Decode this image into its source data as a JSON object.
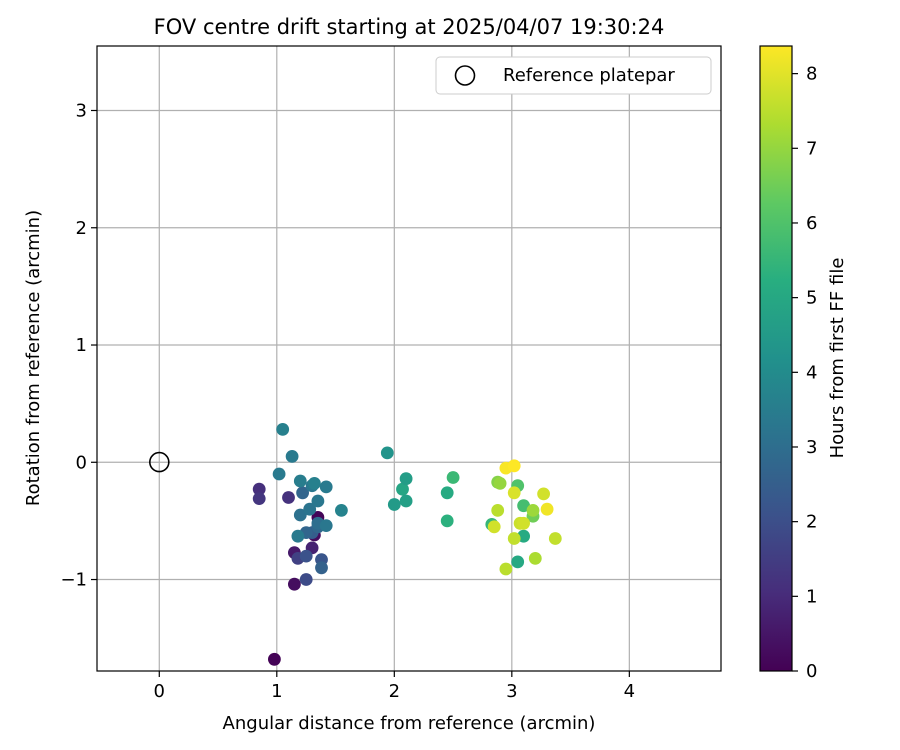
{
  "chart_data": {
    "type": "scatter",
    "title": "FOV centre drift starting at 2025/04/07 19:30:24",
    "xlabel": "Angular distance from reference (arcmin)",
    "ylabel": "Rotation from reference (arcmin)",
    "xlim": [
      -0.53,
      4.78
    ],
    "ylim": [
      -1.78,
      3.55
    ],
    "xticks": [
      0,
      1,
      2,
      3,
      4
    ],
    "yticks": [
      -1,
      0,
      1,
      2,
      3
    ],
    "xtick_labels": [
      "0",
      "1",
      "2",
      "3",
      "4"
    ],
    "ytick_labels": [
      "−1",
      "0",
      "1",
      "2",
      "3"
    ],
    "grid": true,
    "legend": {
      "label": "Reference platepar",
      "position": "top-right"
    },
    "reference_point": {
      "x": 0,
      "y": 0,
      "label": "Reference platepar"
    },
    "colorbar": {
      "label": "Hours from first FF file",
      "min": 0,
      "max": 8.37,
      "ticks": [
        0,
        1,
        2,
        3,
        4,
        5,
        6,
        7,
        8
      ],
      "tick_labels": [
        "0",
        "1",
        "2",
        "3",
        "4",
        "5",
        "6",
        "7",
        "8"
      ],
      "colormap": "viridis"
    },
    "points": [
      {
        "x": 0.98,
        "y": -1.68,
        "t": 0.05
      },
      {
        "x": 1.15,
        "y": -1.04,
        "t": 0.3
      },
      {
        "x": 1.35,
        "y": -0.47,
        "t": 0.1
      },
      {
        "x": 1.32,
        "y": -0.62,
        "t": 0.3
      },
      {
        "x": 1.15,
        "y": -0.77,
        "t": 0.6
      },
      {
        "x": 1.3,
        "y": -0.73,
        "t": 0.8
      },
      {
        "x": 0.85,
        "y": -0.23,
        "t": 1.1
      },
      {
        "x": 0.85,
        "y": -0.31,
        "t": 1.3
      },
      {
        "x": 1.1,
        "y": -0.3,
        "t": 1.2
      },
      {
        "x": 1.18,
        "y": -0.82,
        "t": 1.6
      },
      {
        "x": 1.25,
        "y": -1.0,
        "t": 1.9
      },
      {
        "x": 1.25,
        "y": -0.8,
        "t": 2.1
      },
      {
        "x": 1.38,
        "y": -0.83,
        "t": 2.2
      },
      {
        "x": 1.38,
        "y": -0.9,
        "t": 2.6
      },
      {
        "x": 1.3,
        "y": -0.6,
        "t": 2.5
      },
      {
        "x": 1.25,
        "y": -0.6,
        "t": 2.7
      },
      {
        "x": 1.35,
        "y": -0.55,
        "t": 2.8
      },
      {
        "x": 1.35,
        "y": -0.52,
        "t": 3.0
      },
      {
        "x": 1.42,
        "y": -0.54,
        "t": 3.3
      },
      {
        "x": 1.18,
        "y": -0.63,
        "t": 3.4
      },
      {
        "x": 1.2,
        "y": -0.45,
        "t": 3.1
      },
      {
        "x": 1.28,
        "y": -0.4,
        "t": 3.2
      },
      {
        "x": 1.22,
        "y": -0.26,
        "t": 2.7
      },
      {
        "x": 1.2,
        "y": -0.16,
        "t": 3.5
      },
      {
        "x": 1.3,
        "y": -0.2,
        "t": 3.3
      },
      {
        "x": 1.32,
        "y": -0.18,
        "t": 3.6
      },
      {
        "x": 1.35,
        "y": -0.33,
        "t": 3.3
      },
      {
        "x": 1.42,
        "y": -0.21,
        "t": 3.4
      },
      {
        "x": 1.13,
        "y": 0.05,
        "t": 3.4
      },
      {
        "x": 1.05,
        "y": 0.28,
        "t": 3.6
      },
      {
        "x": 1.02,
        "y": -0.1,
        "t": 3.4
      },
      {
        "x": 1.55,
        "y": -0.41,
        "t": 3.7
      },
      {
        "x": 1.94,
        "y": 0.08,
        "t": 4.3
      },
      {
        "x": 2.0,
        "y": -0.36,
        "t": 4.5
      },
      {
        "x": 2.07,
        "y": -0.23,
        "t": 4.9
      },
      {
        "x": 2.1,
        "y": -0.14,
        "t": 4.6
      },
      {
        "x": 2.1,
        "y": -0.33,
        "t": 4.7
      },
      {
        "x": 2.45,
        "y": -0.26,
        "t": 5.1
      },
      {
        "x": 2.45,
        "y": -0.5,
        "t": 5.3
      },
      {
        "x": 2.5,
        "y": -0.13,
        "t": 5.6
      },
      {
        "x": 2.83,
        "y": -0.53,
        "t": 5.5
      },
      {
        "x": 3.1,
        "y": -0.63,
        "t": 5.1
      },
      {
        "x": 3.05,
        "y": -0.85,
        "t": 5.0
      },
      {
        "x": 3.1,
        "y": -0.37,
        "t": 5.8
      },
      {
        "x": 3.05,
        "y": -0.2,
        "t": 6.0
      },
      {
        "x": 3.18,
        "y": -0.46,
        "t": 6.5
      },
      {
        "x": 2.88,
        "y": -0.17,
        "t": 6.8
      },
      {
        "x": 2.9,
        "y": -0.18,
        "t": 7.0
      },
      {
        "x": 3.18,
        "y": -0.41,
        "t": 7.1
      },
      {
        "x": 3.2,
        "y": -0.82,
        "t": 7.3
      },
      {
        "x": 2.95,
        "y": -0.91,
        "t": 7.5
      },
      {
        "x": 3.02,
        "y": -0.65,
        "t": 7.6
      },
      {
        "x": 2.88,
        "y": -0.41,
        "t": 7.5
      },
      {
        "x": 2.85,
        "y": -0.55,
        "t": 7.8
      },
      {
        "x": 3.07,
        "y": -0.52,
        "t": 7.7
      },
      {
        "x": 3.1,
        "y": -0.52,
        "t": 7.8
      },
      {
        "x": 3.02,
        "y": -0.26,
        "t": 7.9
      },
      {
        "x": 3.27,
        "y": -0.27,
        "t": 7.8
      },
      {
        "x": 3.37,
        "y": -0.65,
        "t": 7.6
      },
      {
        "x": 3.3,
        "y": -0.4,
        "t": 8.2
      },
      {
        "x": 2.95,
        "y": -0.05,
        "t": 8.3
      },
      {
        "x": 3.02,
        "y": -0.03,
        "t": 8.37
      }
    ]
  }
}
